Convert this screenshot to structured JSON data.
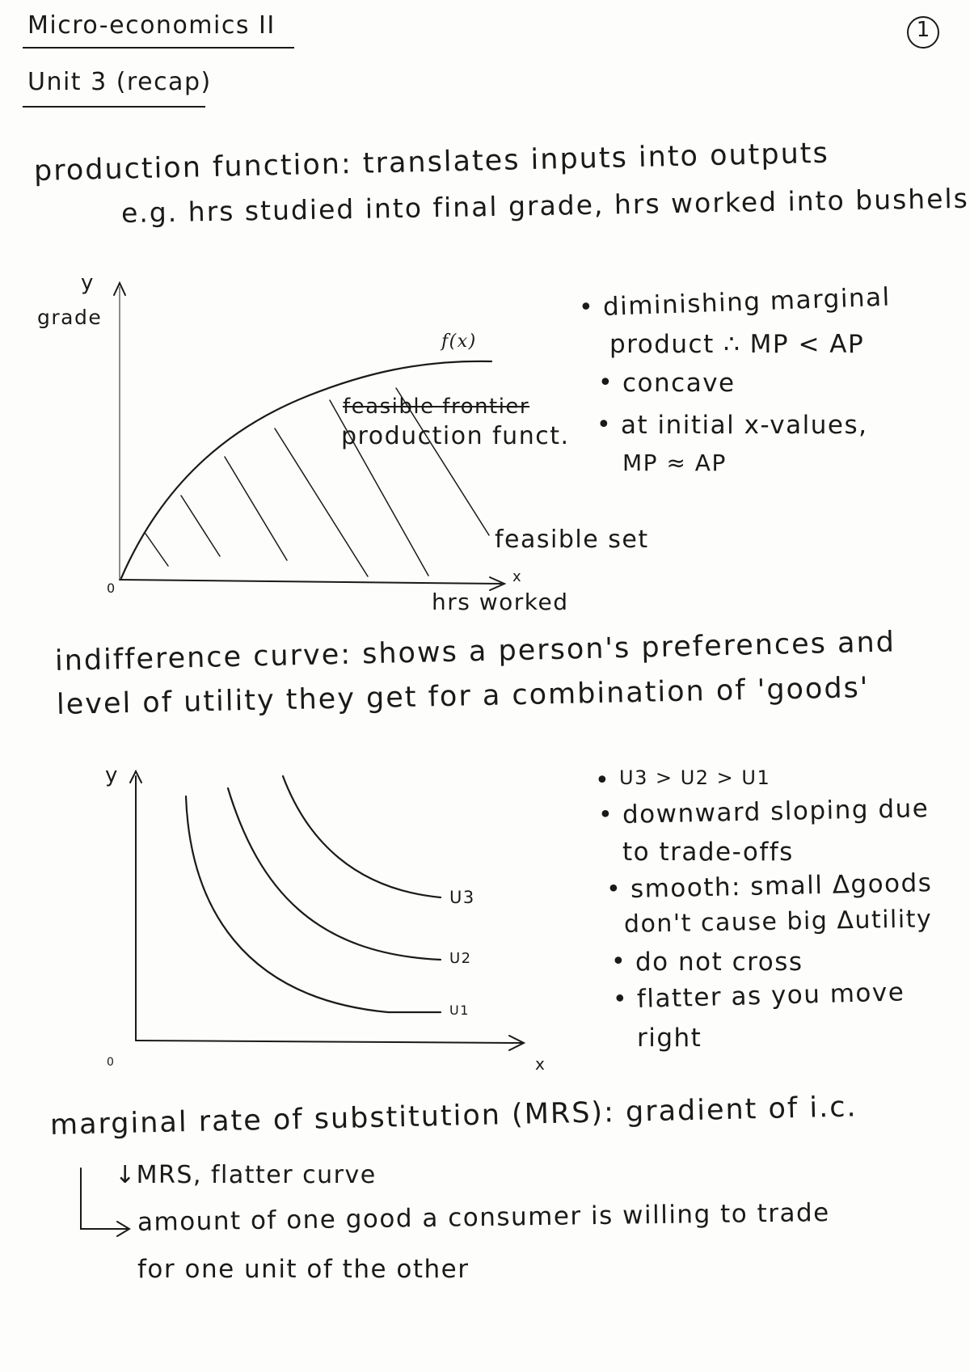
{
  "header": {
    "course": "Micro-economics II",
    "unit": "Unit 3 (recap)",
    "page_number": "1"
  },
  "production": {
    "definition_line1": "production function: translates inputs into outputs",
    "definition_line2": "e.g. hrs studied into final grade, hrs worked into bushels",
    "graph": {
      "y_symbol": "y",
      "y_label": "grade",
      "origin": "0",
      "x_symbol": "x",
      "x_label": "hrs worked",
      "curve_label": "f(x)",
      "struck_label": "feasible frontier",
      "frontier_label": "production funct.",
      "set_label": "feasible set"
    },
    "notes": [
      "diminishing marginal",
      "product ∴ MP < AP",
      "concave",
      "at initial x-values,",
      "MP ≈ AP"
    ]
  },
  "indifference": {
    "definition_line1": "indifference curve: shows a person's preferences and",
    "definition_line2": "level of utility they get for a combination of 'goods'",
    "graph": {
      "y_symbol": "y",
      "x_symbol": "x",
      "origin": "0",
      "curves": [
        "U3",
        "U2",
        "U1"
      ]
    },
    "notes": [
      "U3 > U2 > U1",
      "downward sloping due",
      "to trade-offs",
      "smooth: small Δgoods",
      "don't cause big Δutility",
      "do not cross",
      "flatter as you move",
      "right"
    ]
  },
  "mrs": {
    "definition": "marginal rate of substitution (MRS): gradient of i.c.",
    "point1": "↓MRS, flatter curve",
    "point2_line1": "amount of one good a consumer is willing to trade",
    "point2_line2": "for one unit of the other"
  }
}
